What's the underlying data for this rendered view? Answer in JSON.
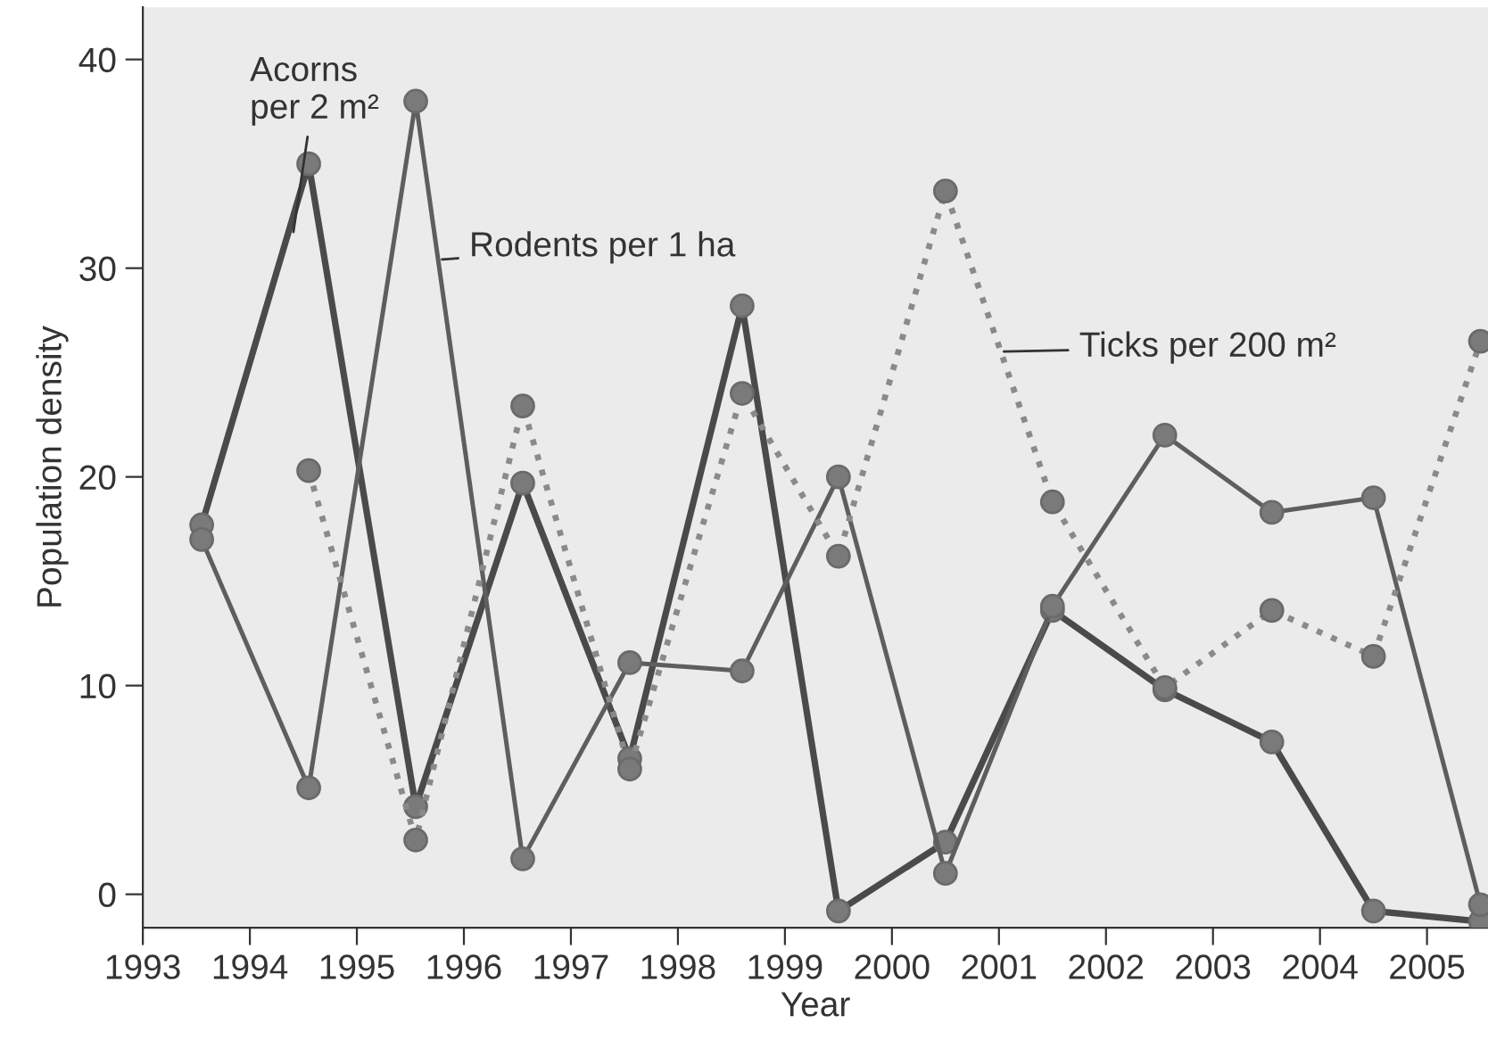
{
  "chart_data": {
    "type": "line",
    "xlabel": "Year",
    "ylabel": "Population density",
    "x": [
      1993.55,
      1994.55,
      1995.55,
      1996.55,
      1997.55,
      1998.6,
      1999.5,
      2000.5,
      2001.5,
      2002.55,
      2003.55,
      2004.5,
      2005.5
    ],
    "series": [
      {
        "name": "Acorns\nper 2 m²",
        "color": "#4a4a4a",
        "line_style": "solid",
        "values": [
          17.7,
          35.0,
          4.2,
          19.7,
          6.5,
          28.2,
          -0.8,
          2.5,
          13.6,
          9.8,
          7.3,
          -0.8,
          -1.3
        ]
      },
      {
        "name": "Rodents per 1 ha",
        "color": "#5e5e5e",
        "line_style": "solid",
        "values": [
          17.0,
          5.1,
          38.0,
          1.7,
          11.1,
          10.7,
          20.0,
          1.0,
          13.8,
          22.0,
          18.3,
          19.0,
          -0.5
        ]
      },
      {
        "name": "Ticks per 200 m²",
        "color": "#8a8a8a",
        "line_style": "dotted",
        "values": [
          null,
          20.3,
          2.6,
          23.4,
          6.0,
          24.0,
          16.2,
          33.7,
          18.8,
          9.9,
          13.6,
          11.4,
          26.5
        ]
      }
    ],
    "marker": "circle",
    "legend": false,
    "grid": false,
    "xlim": [
      1993.0,
      2005.57
    ],
    "xticks": [
      1993,
      1994,
      1995,
      1996,
      1997,
      1998,
      1999,
      2000,
      2001,
      2002,
      2003,
      2004,
      2005
    ],
    "ylim": [
      -1.6,
      42.5
    ],
    "yticks": [
      0,
      10,
      20,
      30,
      40
    ]
  }
}
